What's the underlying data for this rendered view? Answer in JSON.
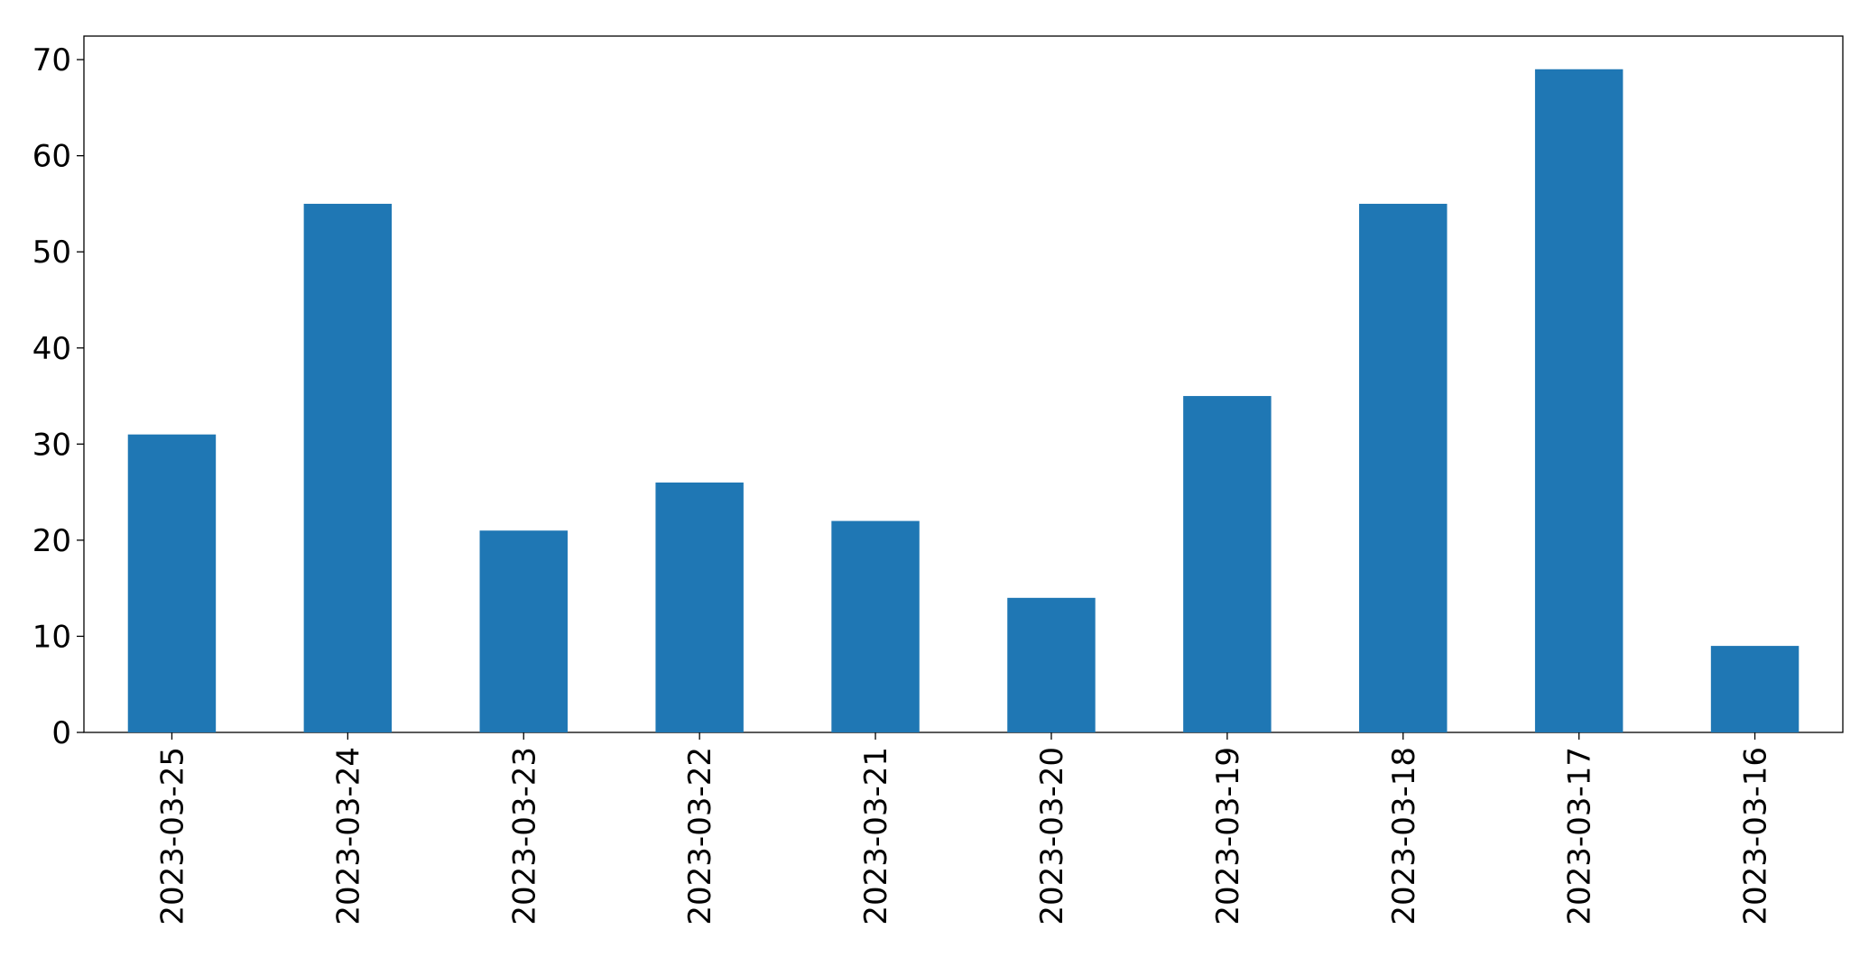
{
  "chart_data": {
    "type": "bar",
    "categories": [
      "2023-03-25",
      "2023-03-24",
      "2023-03-23",
      "2023-03-22",
      "2023-03-21",
      "2023-03-20",
      "2023-03-19",
      "2023-03-18",
      "2023-03-17",
      "2023-03-16"
    ],
    "values": [
      31,
      55,
      21,
      26,
      22,
      14,
      35,
      55,
      69,
      9
    ],
    "color": "#1f77b4",
    "ylim": [
      0,
      72.45
    ],
    "yticks": [
      0,
      10,
      20,
      30,
      40,
      50,
      60,
      70
    ],
    "grid": false
  }
}
